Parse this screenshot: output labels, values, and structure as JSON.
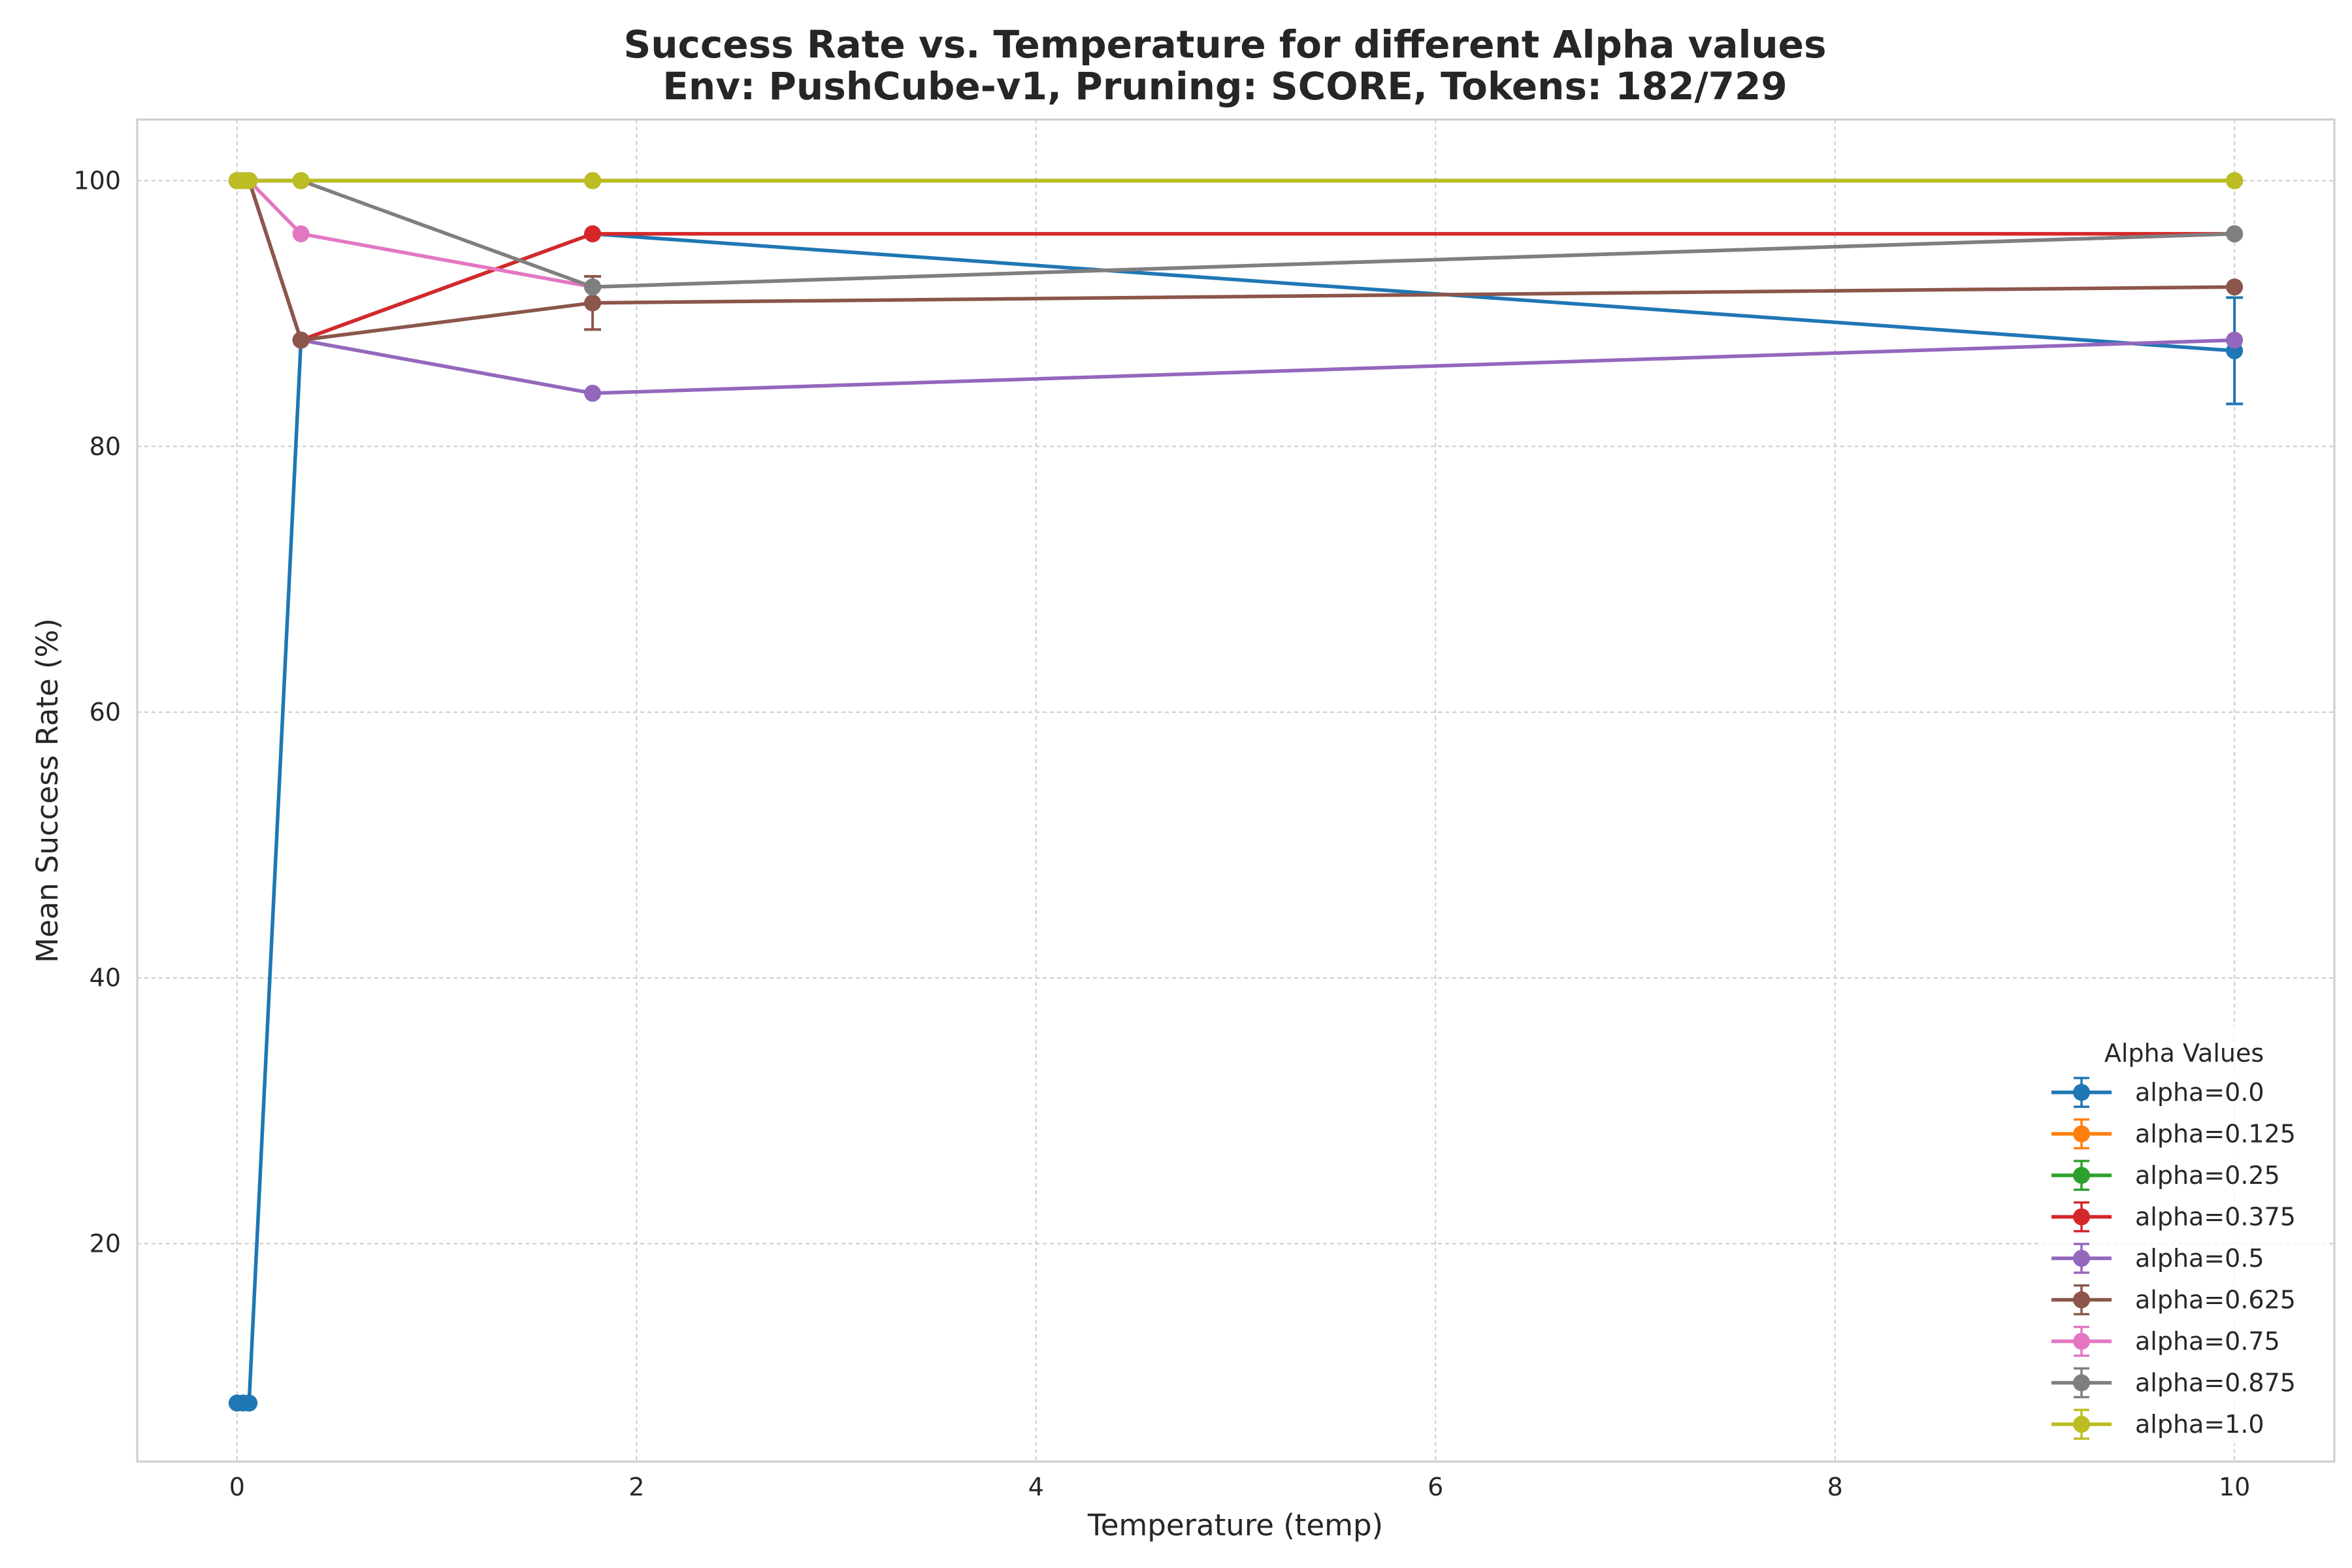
{
  "chart_data": {
    "type": "line",
    "title": "Success Rate vs. Temperature for different Alpha values",
    "subtitle": "Env: PushCube-v1, Pruning: SCORE, Tokens: 182/729",
    "xlabel": "Temperature (temp)",
    "ylabel": "Mean Success Rate (%)",
    "xlim": [
      -0.5,
      10.5
    ],
    "ylim": [
      3.6,
      104.6
    ],
    "xticks": [
      0,
      2,
      4,
      6,
      8,
      10
    ],
    "yticks": [
      20,
      40,
      60,
      80,
      100
    ],
    "grid": true,
    "legend": {
      "title": "Alpha Values",
      "placement": "bottom-right"
    },
    "series": [
      {
        "name": "alpha=0.0",
        "color": "#1f77b4",
        "points": [
          {
            "x": 0.0,
            "y": 8
          },
          {
            "x": 0.03,
            "y": 8
          },
          {
            "x": 0.06,
            "y": 8
          },
          {
            "x": 0.32,
            "y": 88
          },
          {
            "x": 1.78,
            "y": 96
          },
          {
            "x": 10.0,
            "y": 87.2,
            "err": 4.0
          }
        ]
      },
      {
        "name": "alpha=0.125",
        "color": "#ff7f0e",
        "points": [
          {
            "x": 0.0,
            "y": 100
          },
          {
            "x": 0.03,
            "y": 100
          },
          {
            "x": 0.06,
            "y": 100
          },
          {
            "x": 0.32,
            "y": 100
          },
          {
            "x": 1.78,
            "y": 100
          },
          {
            "x": 10.0,
            "y": 100
          }
        ]
      },
      {
        "name": "alpha=0.25",
        "color": "#2ca02c",
        "points": [
          {
            "x": 0.0,
            "y": 100
          },
          {
            "x": 0.03,
            "y": 100
          },
          {
            "x": 0.06,
            "y": 100
          },
          {
            "x": 0.32,
            "y": 100
          },
          {
            "x": 1.78,
            "y": 100
          },
          {
            "x": 10.0,
            "y": 100
          }
        ]
      },
      {
        "name": "alpha=0.375",
        "color": "#d62728",
        "points": [
          {
            "x": 0.0,
            "y": 100
          },
          {
            "x": 0.03,
            "y": 100
          },
          {
            "x": 0.06,
            "y": 100
          },
          {
            "x": 0.32,
            "y": 88
          },
          {
            "x": 1.78,
            "y": 96
          },
          {
            "x": 10.0,
            "y": 96
          }
        ]
      },
      {
        "name": "alpha=0.5",
        "color": "#9467bd",
        "points": [
          {
            "x": 0.0,
            "y": 100
          },
          {
            "x": 0.03,
            "y": 100
          },
          {
            "x": 0.06,
            "y": 100
          },
          {
            "x": 0.32,
            "y": 88
          },
          {
            "x": 1.78,
            "y": 84
          },
          {
            "x": 10.0,
            "y": 88
          }
        ]
      },
      {
        "name": "alpha=0.625",
        "color": "#8c564b",
        "points": [
          {
            "x": 0.0,
            "y": 100
          },
          {
            "x": 0.03,
            "y": 100
          },
          {
            "x": 0.06,
            "y": 100
          },
          {
            "x": 0.32,
            "y": 88
          },
          {
            "x": 1.78,
            "y": 90.8,
            "err": 2.0
          },
          {
            "x": 10.0,
            "y": 92
          }
        ]
      },
      {
        "name": "alpha=0.75",
        "color": "#e377c2",
        "points": [
          {
            "x": 0.0,
            "y": 100
          },
          {
            "x": 0.03,
            "y": 100
          },
          {
            "x": 0.06,
            "y": 100
          },
          {
            "x": 0.32,
            "y": 96
          },
          {
            "x": 1.78,
            "y": 92
          },
          {
            "x": 10.0,
            "y": 96
          }
        ]
      },
      {
        "name": "alpha=0.875",
        "color": "#7f7f7f",
        "points": [
          {
            "x": 0.0,
            "y": 100
          },
          {
            "x": 0.03,
            "y": 100
          },
          {
            "x": 0.06,
            "y": 100
          },
          {
            "x": 0.32,
            "y": 100
          },
          {
            "x": 1.78,
            "y": 92
          },
          {
            "x": 10.0,
            "y": 96
          }
        ]
      },
      {
        "name": "alpha=1.0",
        "color": "#bcbd22",
        "points": [
          {
            "x": 0.0,
            "y": 100
          },
          {
            "x": 0.03,
            "y": 100
          },
          {
            "x": 0.06,
            "y": 100
          },
          {
            "x": 0.32,
            "y": 100
          },
          {
            "x": 1.78,
            "y": 100
          },
          {
            "x": 10.0,
            "y": 100
          }
        ]
      }
    ]
  }
}
